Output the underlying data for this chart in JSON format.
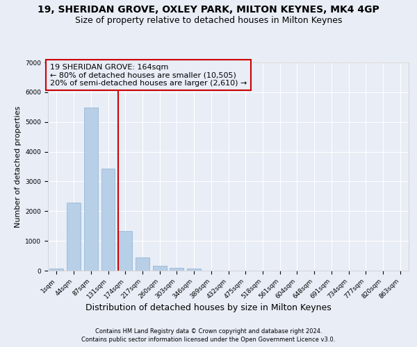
{
  "title1": "19, SHERIDAN GROVE, OXLEY PARK, MILTON KEYNES, MK4 4GP",
  "title2": "Size of property relative to detached houses in Milton Keynes",
  "xlabel": "Distribution of detached houses by size in Milton Keynes",
  "ylabel": "Number of detached properties",
  "categories": [
    "1sqm",
    "44sqm",
    "87sqm",
    "131sqm",
    "174sqm",
    "217sqm",
    "260sqm",
    "303sqm",
    "346sqm",
    "389sqm",
    "432sqm",
    "475sqm",
    "518sqm",
    "561sqm",
    "604sqm",
    "648sqm",
    "691sqm",
    "734sqm",
    "777sqm",
    "820sqm",
    "863sqm"
  ],
  "values": [
    75,
    2280,
    5480,
    3430,
    1320,
    450,
    165,
    85,
    60,
    0,
    0,
    0,
    0,
    0,
    0,
    0,
    0,
    0,
    0,
    0,
    0
  ],
  "bar_color": "#b8cfe8",
  "bar_edge_color": "#8ab0d0",
  "vline_color": "#cc0000",
  "vline_x_index": 3.6,
  "annotation_line1": "19 SHERIDAN GROVE: 164sqm",
  "annotation_line2": "← 80% of detached houses are smaller (10,505)",
  "annotation_line3": "20% of semi-detached houses are larger (2,610) →",
  "ylim": [
    0,
    7000
  ],
  "footnote1": "Contains HM Land Registry data © Crown copyright and database right 2024.",
  "footnote2": "Contains public sector information licensed under the Open Government Licence v3.0.",
  "background_color": "#e8edf6",
  "grid_color": "#ffffff",
  "title1_fontsize": 10,
  "title2_fontsize": 9,
  "xlabel_fontsize": 9,
  "ylabel_fontsize": 8,
  "tick_fontsize": 6.5,
  "footnote_fontsize": 6,
  "annotation_fontsize": 8
}
